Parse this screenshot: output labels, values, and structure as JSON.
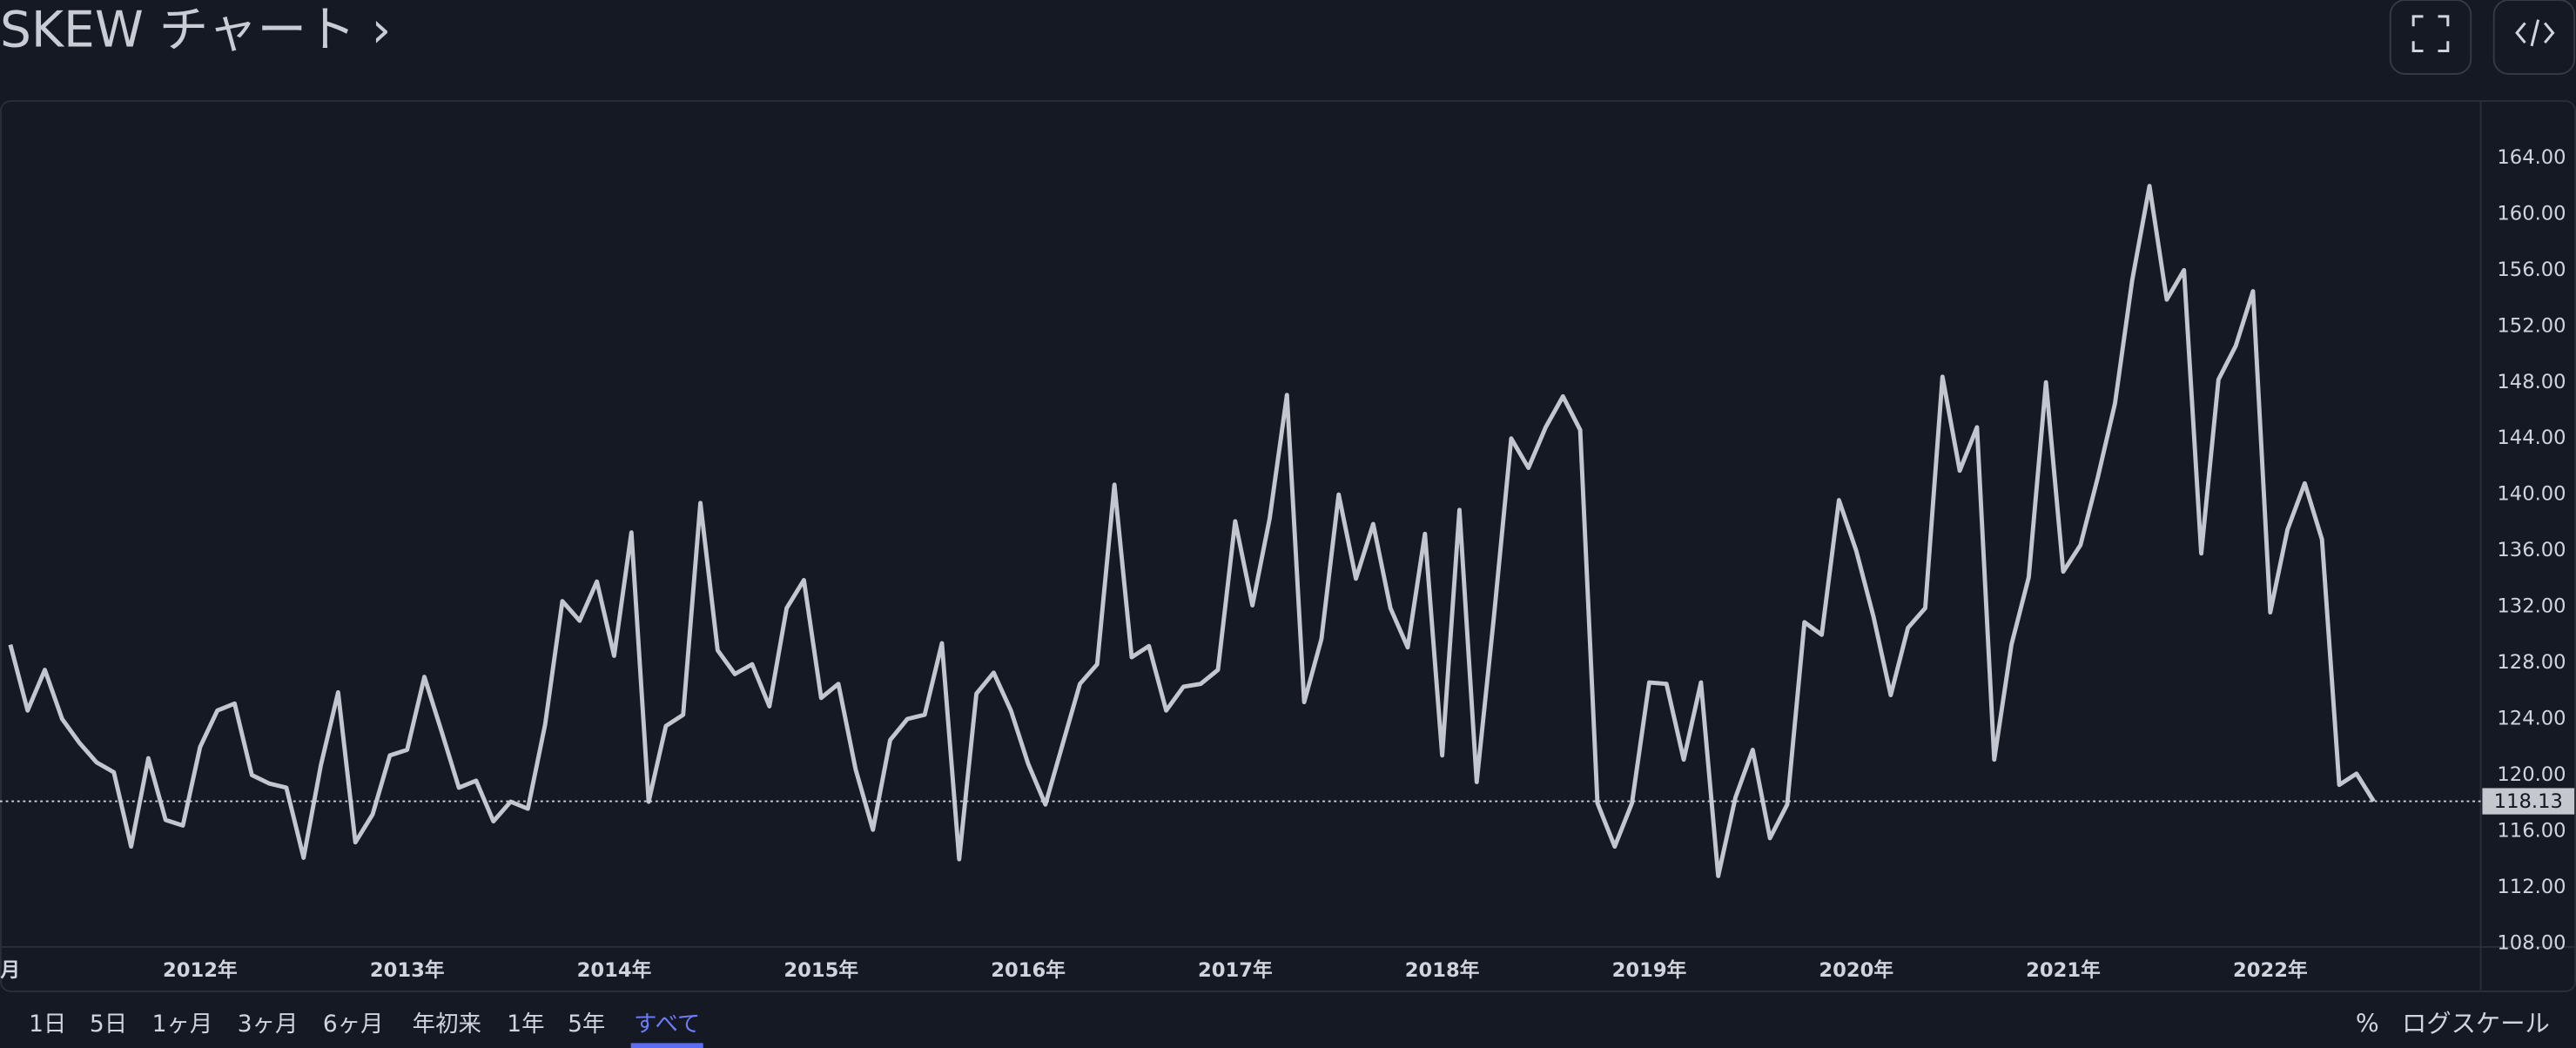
{
  "header": {
    "title": "SKEW チャート ›"
  },
  "chart_data": {
    "type": "line",
    "values": [
      129.3,
      124.6,
      127.5,
      124,
      122.3,
      120.9,
      120.2,
      114.9,
      121.2,
      116.8,
      116.4,
      122,
      124.6,
      125.1,
      120,
      119.4,
      119.1,
      114.1,
      120.7,
      125.9,
      115.2,
      117.2,
      121.4,
      121.8,
      127,
      123.1,
      119.1,
      119.6,
      116.7,
      118.1,
      117.6,
      123.6,
      132.4,
      131,
      133.8,
      128.5,
      137.3,
      118.1,
      123.5,
      124.3,
      139.4,
      128.9,
      127.2,
      127.9,
      124.9,
      131.9,
      133.9,
      125.5,
      126.5,
      120.4,
      116.1,
      122.5,
      124,
      124.3,
      129.4,
      114,
      125.8,
      127.3,
      124.6,
      120.8,
      117.9,
      122.2,
      126.5,
      127.9,
      140.7,
      128.4,
      129.2,
      124.6,
      126.3,
      126.5,
      127.5,
      138.1,
      132.1,
      138.3,
      147.1,
      125.2,
      129.7,
      140,
      134,
      137.9,
      131.9,
      129.1,
      137.2,
      121.4,
      138.9,
      119.5,
      131.3,
      144,
      141.9,
      144.8,
      147,
      144.6,
      118,
      114.9,
      118,
      126.6,
      126.5,
      121.1,
      126.6,
      112.8,
      118.4,
      121.8,
      115.5,
      117.9,
      130.9,
      130,
      139.6,
      136,
      131.3,
      125.7,
      130.5,
      131.9,
      148.4,
      141.7,
      144.8,
      121.1,
      129.3,
      134.1,
      148,
      134.5,
      136.4,
      141.2,
      146.5,
      155.3,
      162,
      153.9,
      156,
      135.8,
      148.2,
      150.6,
      154.5,
      131.6,
      137.5,
      140.8,
      136.8,
      119.3,
      120.1,
      118.13
    ],
    "color": "#c3c6ce",
    "xlim": [
      -0.6,
      143.2
    ],
    "xticks": [
      {
        "value": 0,
        "label": "月"
      },
      {
        "value": 11,
        "label": "2012年"
      },
      {
        "value": 23,
        "label": "2013年"
      },
      {
        "value": 35,
        "label": "2014年"
      },
      {
        "value": 47,
        "label": "2015年"
      },
      {
        "value": 59,
        "label": "2016年"
      },
      {
        "value": 71,
        "label": "2017年"
      },
      {
        "value": 83,
        "label": "2018年"
      },
      {
        "value": 95,
        "label": "2019年"
      },
      {
        "value": 107,
        "label": "2020年"
      },
      {
        "value": 119,
        "label": "2021年"
      },
      {
        "value": 131,
        "label": "2022年"
      }
    ],
    "ylim": [
      107.8,
      168
    ],
    "yticks": [
      {
        "value": 108,
        "label": "108.00"
      },
      {
        "value": 112,
        "label": "112.00"
      },
      {
        "value": 116,
        "label": "116.00"
      },
      {
        "value": 120,
        "label": "120.00"
      },
      {
        "value": 124,
        "label": "124.00"
      },
      {
        "value": 128,
        "label": "128.00"
      },
      {
        "value": 132,
        "label": "132.00"
      },
      {
        "value": 136,
        "label": "136.00"
      },
      {
        "value": 140,
        "label": "140.00"
      },
      {
        "value": 144,
        "label": "144.00"
      },
      {
        "value": 148,
        "label": "148.00"
      },
      {
        "value": 152,
        "label": "152.00"
      },
      {
        "value": 156,
        "label": "156.00"
      },
      {
        "value": 160,
        "label": "160.00"
      },
      {
        "value": 164,
        "label": "164.00"
      }
    ],
    "grid": false
  },
  "range_buttons": [
    {
      "label": "1日"
    },
    {
      "label": "5日"
    },
    {
      "label": "1ヶ月"
    },
    {
      "label": "3ヶ月"
    },
    {
      "label": "6ヶ月"
    },
    {
      "label": "年初来"
    },
    {
      "label": "1年"
    },
    {
      "label": "5年"
    },
    {
      "label": "すべて",
      "active": true
    }
  ],
  "toolbar": {
    "percent": "%",
    "log_scale": "ログスケール"
  }
}
